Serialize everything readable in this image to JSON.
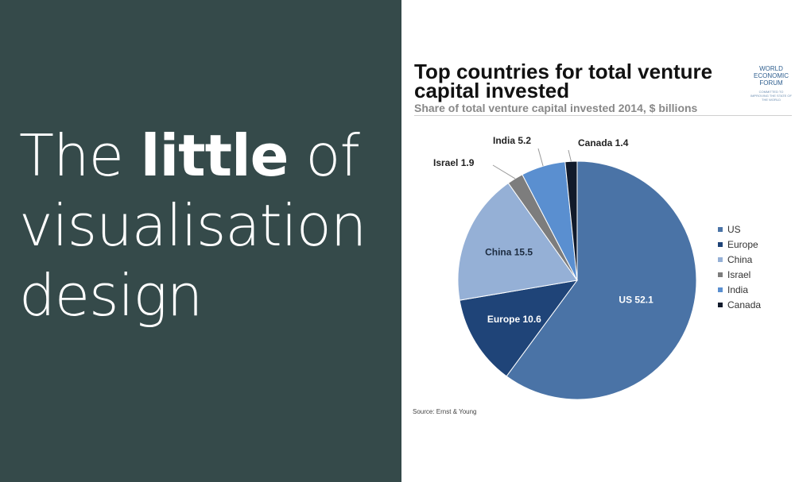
{
  "left": {
    "title_part1": "The ",
    "title_bold": "little",
    "title_part2": " of visualisation design"
  },
  "colors": {
    "left_bg": "#354a4a",
    "us": "#4a73a6",
    "europe": "#1f4478",
    "china": "#95b0d6",
    "israel": "#7d7d7d",
    "india": "#5a8fd0",
    "canada": "#111a2b"
  },
  "logo": {
    "line1": "WORLD",
    "line2": "ECONOMIC",
    "line3": "FORUM",
    "tagline": "COMMITTED TO IMPROVING THE STATE OF THE WORLD"
  },
  "chart_data": {
    "type": "pie",
    "title": "Top countries for total venture capital invested",
    "subtitle": "Share of total venture capital invested 2014, $ billions",
    "categories": [
      "US",
      "Europe",
      "China",
      "Israel",
      "India",
      "Canada"
    ],
    "values": [
      52.1,
      10.6,
      15.5,
      1.9,
      5.2,
      1.4
    ],
    "legend": [
      "US",
      "Europe",
      "China",
      "Israel",
      "India",
      "Canada"
    ],
    "legend_position": "right",
    "source": "Source: Ernst & Young"
  }
}
